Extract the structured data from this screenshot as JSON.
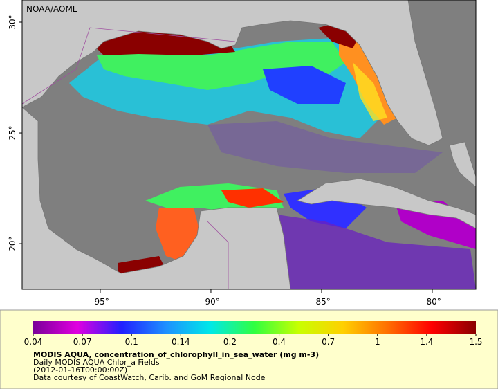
{
  "map": {
    "credit": "NOAA/AOML",
    "xlim": [
      -98.53,
      -78.03
    ],
    "ylim": [
      17.94,
      31
    ],
    "xticks": [
      {
        "value": -95,
        "label": "-95°"
      },
      {
        "value": -90,
        "label": "-90°"
      },
      {
        "value": -85,
        "label": "-85°"
      },
      {
        "value": -80,
        "label": "-80°"
      }
    ],
    "yticks": [
      {
        "value": 30,
        "label": "30°"
      },
      {
        "value": 25,
        "label": "25°"
      },
      {
        "value": 20,
        "label": "20°"
      }
    ]
  },
  "colorbar": {
    "ticks": [
      0.04,
      0.07,
      0.1,
      0.14,
      0.2,
      0.4,
      0.7,
      1,
      1.4,
      1.5
    ],
    "colors": [
      "#7a0099",
      "#e000e0",
      "#2020ff",
      "#1e90ff",
      "#00e8e8",
      "#30ff40",
      "#c8ff00",
      "#ffd000",
      "#ff7000",
      "#ff0000",
      "#8a0000"
    ]
  },
  "caption": {
    "title": "MODIS AQUA, concentration_of_chlorophyll_in_sea_water (mg m-3)",
    "lines": [
      "Daily MODIS AQUA Chlor_a Fields",
      "(2012-01-16T00:00:00Z)",
      "Data courtesy of CoastWatch, Carib. and GoM Regional Node"
    ]
  }
}
